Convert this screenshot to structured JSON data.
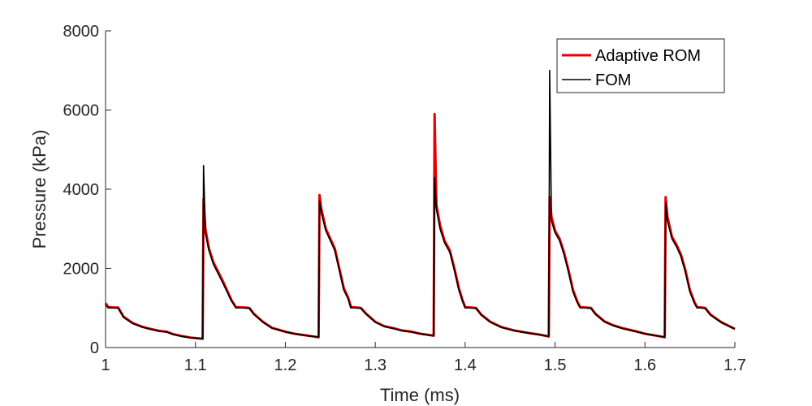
{
  "chart_data": {
    "type": "line",
    "xlabel": "Time (ms)",
    "ylabel": "Pressure (kPa)",
    "xlim": [
      1,
      1.7
    ],
    "ylim": [
      0,
      8000
    ],
    "xticks": [
      1,
      1.1,
      1.2,
      1.3,
      1.4,
      1.5,
      1.6,
      1.7
    ],
    "xtick_labels": [
      "1",
      "1.1",
      "1.2",
      "1.3",
      "1.4",
      "1.5",
      "1.6",
      "1.7"
    ],
    "yticks": [
      0,
      2000,
      4000,
      6000,
      8000
    ],
    "ytick_labels": [
      "0",
      "2000",
      "4000",
      "6000",
      "8000"
    ],
    "grid": false,
    "legend_position": "top-right",
    "series": [
      {
        "name": "Adaptive ROM",
        "color": "#e80000",
        "points": [
          [
            1.0,
            1120
          ],
          [
            1.003,
            1020
          ],
          [
            1.01,
            1010
          ],
          [
            1.014,
            1010
          ],
          [
            1.02,
            780
          ],
          [
            1.03,
            620
          ],
          [
            1.04,
            530
          ],
          [
            1.05,
            470
          ],
          [
            1.06,
            420
          ],
          [
            1.068,
            400
          ],
          [
            1.075,
            340
          ],
          [
            1.085,
            290
          ],
          [
            1.095,
            250
          ],
          [
            1.108,
            220
          ],
          [
            1.109,
            3750
          ],
          [
            1.111,
            3000
          ],
          [
            1.115,
            2500
          ],
          [
            1.12,
            2150
          ],
          [
            1.13,
            1700
          ],
          [
            1.14,
            1200
          ],
          [
            1.145,
            1020
          ],
          [
            1.155,
            1010
          ],
          [
            1.16,
            1000
          ],
          [
            1.165,
            850
          ],
          [
            1.175,
            650
          ],
          [
            1.185,
            500
          ],
          [
            1.2,
            400
          ],
          [
            1.21,
            350
          ],
          [
            1.225,
            300
          ],
          [
            1.237,
            260
          ],
          [
            1.238,
            3850
          ],
          [
            1.24,
            3500
          ],
          [
            1.245,
            3000
          ],
          [
            1.25,
            2750
          ],
          [
            1.255,
            2500
          ],
          [
            1.26,
            2000
          ],
          [
            1.265,
            1500
          ],
          [
            1.27,
            1250
          ],
          [
            1.273,
            1020
          ],
          [
            1.28,
            1010
          ],
          [
            1.284,
            1000
          ],
          [
            1.29,
            850
          ],
          [
            1.3,
            650
          ],
          [
            1.31,
            540
          ],
          [
            1.32,
            490
          ],
          [
            1.33,
            430
          ],
          [
            1.34,
            400
          ],
          [
            1.35,
            350
          ],
          [
            1.365,
            300
          ],
          [
            1.366,
            5900
          ],
          [
            1.368,
            3600
          ],
          [
            1.372,
            3100
          ],
          [
            1.377,
            2700
          ],
          [
            1.383,
            2450
          ],
          [
            1.388,
            2000
          ],
          [
            1.393,
            1500
          ],
          [
            1.397,
            1200
          ],
          [
            1.4,
            1020
          ],
          [
            1.407,
            1010
          ],
          [
            1.412,
            1000
          ],
          [
            1.418,
            830
          ],
          [
            1.428,
            650
          ],
          [
            1.44,
            520
          ],
          [
            1.455,
            430
          ],
          [
            1.47,
            370
          ],
          [
            1.482,
            330
          ],
          [
            1.493,
            280
          ],
          [
            1.494,
            3800
          ],
          [
            1.496,
            3300
          ],
          [
            1.5,
            2950
          ],
          [
            1.505,
            2750
          ],
          [
            1.51,
            2400
          ],
          [
            1.515,
            1950
          ],
          [
            1.52,
            1450
          ],
          [
            1.525,
            1150
          ],
          [
            1.528,
            1020
          ],
          [
            1.535,
            1010
          ],
          [
            1.54,
            1000
          ],
          [
            1.545,
            850
          ],
          [
            1.555,
            660
          ],
          [
            1.565,
            560
          ],
          [
            1.575,
            490
          ],
          [
            1.59,
            410
          ],
          [
            1.6,
            350
          ],
          [
            1.622,
            260
          ],
          [
            1.623,
            3800
          ],
          [
            1.625,
            3300
          ],
          [
            1.63,
            2800
          ],
          [
            1.635,
            2600
          ],
          [
            1.64,
            2350
          ],
          [
            1.645,
            1950
          ],
          [
            1.65,
            1450
          ],
          [
            1.655,
            1150
          ],
          [
            1.658,
            1020
          ],
          [
            1.663,
            1010
          ],
          [
            1.667,
            1000
          ],
          [
            1.673,
            830
          ],
          [
            1.685,
            640
          ],
          [
            1.7,
            470
          ]
        ]
      },
      {
        "name": "FOM",
        "color": "#000000",
        "points": [
          [
            1.0,
            1080
          ],
          [
            1.003,
            1000
          ],
          [
            1.01,
            1000
          ],
          [
            1.014,
            1000
          ],
          [
            1.02,
            760
          ],
          [
            1.03,
            610
          ],
          [
            1.04,
            520
          ],
          [
            1.05,
            460
          ],
          [
            1.06,
            410
          ],
          [
            1.068,
            390
          ],
          [
            1.075,
            330
          ],
          [
            1.085,
            280
          ],
          [
            1.095,
            245
          ],
          [
            1.108,
            230
          ],
          [
            1.109,
            4600
          ],
          [
            1.111,
            2900
          ],
          [
            1.115,
            2450
          ],
          [
            1.12,
            2100
          ],
          [
            1.13,
            1650
          ],
          [
            1.14,
            1180
          ],
          [
            1.145,
            1000
          ],
          [
            1.155,
            1000
          ],
          [
            1.16,
            990
          ],
          [
            1.165,
            840
          ],
          [
            1.175,
            640
          ],
          [
            1.185,
            490
          ],
          [
            1.2,
            395
          ],
          [
            1.21,
            345
          ],
          [
            1.225,
            295
          ],
          [
            1.237,
            265
          ],
          [
            1.238,
            3700
          ],
          [
            1.24,
            3400
          ],
          [
            1.245,
            2950
          ],
          [
            1.25,
            2700
          ],
          [
            1.255,
            2450
          ],
          [
            1.26,
            1950
          ],
          [
            1.265,
            1450
          ],
          [
            1.27,
            1220
          ],
          [
            1.273,
            1000
          ],
          [
            1.28,
            1000
          ],
          [
            1.284,
            990
          ],
          [
            1.29,
            840
          ],
          [
            1.3,
            640
          ],
          [
            1.31,
            530
          ],
          [
            1.32,
            480
          ],
          [
            1.33,
            420
          ],
          [
            1.34,
            395
          ],
          [
            1.35,
            345
          ],
          [
            1.365,
            295
          ],
          [
            1.366,
            4300
          ],
          [
            1.368,
            3500
          ],
          [
            1.372,
            3000
          ],
          [
            1.377,
            2650
          ],
          [
            1.383,
            2400
          ],
          [
            1.388,
            1950
          ],
          [
            1.393,
            1450
          ],
          [
            1.397,
            1180
          ],
          [
            1.4,
            1000
          ],
          [
            1.407,
            1000
          ],
          [
            1.412,
            990
          ],
          [
            1.418,
            820
          ],
          [
            1.428,
            640
          ],
          [
            1.44,
            510
          ],
          [
            1.455,
            420
          ],
          [
            1.47,
            365
          ],
          [
            1.482,
            325
          ],
          [
            1.493,
            285
          ],
          [
            1.494,
            7000
          ],
          [
            1.496,
            3200
          ],
          [
            1.5,
            2900
          ],
          [
            1.505,
            2700
          ],
          [
            1.51,
            2350
          ],
          [
            1.515,
            1900
          ],
          [
            1.52,
            1400
          ],
          [
            1.525,
            1120
          ],
          [
            1.528,
            1000
          ],
          [
            1.535,
            1000
          ],
          [
            1.54,
            990
          ],
          [
            1.545,
            840
          ],
          [
            1.555,
            650
          ],
          [
            1.565,
            550
          ],
          [
            1.575,
            480
          ],
          [
            1.59,
            400
          ],
          [
            1.6,
            345
          ],
          [
            1.622,
            265
          ],
          [
            1.623,
            3650
          ],
          [
            1.625,
            3200
          ],
          [
            1.63,
            2750
          ],
          [
            1.635,
            2550
          ],
          [
            1.64,
            2300
          ],
          [
            1.645,
            1900
          ],
          [
            1.65,
            1400
          ],
          [
            1.655,
            1120
          ],
          [
            1.658,
            1000
          ],
          [
            1.663,
            1000
          ],
          [
            1.667,
            990
          ],
          [
            1.673,
            820
          ],
          [
            1.685,
            630
          ],
          [
            1.7,
            465
          ]
        ]
      }
    ]
  }
}
